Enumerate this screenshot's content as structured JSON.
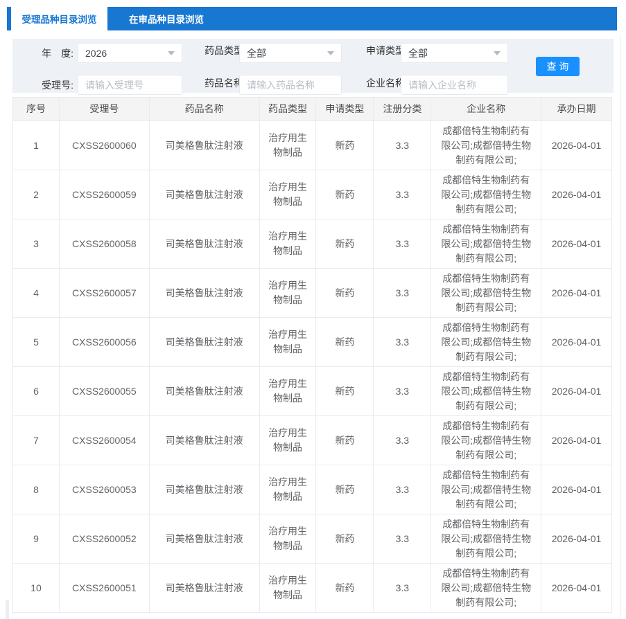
{
  "tabs": [
    {
      "label": "受理品种目录浏览",
      "active": true
    },
    {
      "label": "在审品种目录浏览",
      "active": false
    }
  ],
  "filters": {
    "year": {
      "label": "年　度:",
      "value": "2026"
    },
    "drug_type": {
      "label": "药品类型:",
      "value": "全部"
    },
    "app_type": {
      "label": "申请类型:",
      "value": "全部"
    },
    "acceptance": {
      "label": "受理号:",
      "placeholder": "请输入受理号"
    },
    "drug_name": {
      "label": "药品名称:",
      "placeholder": "请输入药品名称"
    },
    "company": {
      "label": "企业名称:",
      "placeholder": "请输入企业名称"
    },
    "search_label": "查 询"
  },
  "table": {
    "columns": [
      "序号",
      "受理号",
      "药品名称",
      "药品类型",
      "申请类型",
      "注册分类",
      "企业名称",
      "承办日期"
    ],
    "rows": [
      [
        "1",
        "CXSS2600060",
        "司美格鲁肽注射液",
        "治疗用生物制品",
        "新药",
        "3.3",
        "成都倍特生物制药有限公司;成都倍特生物制药有限公司;",
        "2026-04-01"
      ],
      [
        "2",
        "CXSS2600059",
        "司美格鲁肽注射液",
        "治疗用生物制品",
        "新药",
        "3.3",
        "成都倍特生物制药有限公司;成都倍特生物制药有限公司;",
        "2026-04-01"
      ],
      [
        "3",
        "CXSS2600058",
        "司美格鲁肽注射液",
        "治疗用生物制品",
        "新药",
        "3.3",
        "成都倍特生物制药有限公司;成都倍特生物制药有限公司;",
        "2026-04-01"
      ],
      [
        "4",
        "CXSS2600057",
        "司美格鲁肽注射液",
        "治疗用生物制品",
        "新药",
        "3.3",
        "成都倍特生物制药有限公司;成都倍特生物制药有限公司;",
        "2026-04-01"
      ],
      [
        "5",
        "CXSS2600056",
        "司美格鲁肽注射液",
        "治疗用生物制品",
        "新药",
        "3.3",
        "成都倍特生物制药有限公司;成都倍特生物制药有限公司;",
        "2026-04-01"
      ],
      [
        "6",
        "CXSS2600055",
        "司美格鲁肽注射液",
        "治疗用生物制品",
        "新药",
        "3.3",
        "成都倍特生物制药有限公司;成都倍特生物制药有限公司;",
        "2026-04-01"
      ],
      [
        "7",
        "CXSS2600054",
        "司美格鲁肽注射液",
        "治疗用生物制品",
        "新药",
        "3.3",
        "成都倍特生物制药有限公司;成都倍特生物制药有限公司;",
        "2026-04-01"
      ],
      [
        "8",
        "CXSS2600053",
        "司美格鲁肽注射液",
        "治疗用生物制品",
        "新药",
        "3.3",
        "成都倍特生物制药有限公司;成都倍特生物制药有限公司;",
        "2026-04-01"
      ],
      [
        "9",
        "CXSS2600052",
        "司美格鲁肽注射液",
        "治疗用生物制品",
        "新药",
        "3.3",
        "成都倍特生物制药有限公司;成都倍特生物制药有限公司;",
        "2026-04-01"
      ],
      [
        "10",
        "CXSS2600051",
        "司美格鲁肽注射液",
        "治疗用生物制品",
        "新药",
        "3.3",
        "成都倍特生物制药有限公司;成都倍特生物制药有限公司;",
        "2026-04-01"
      ]
    ]
  },
  "colors": {
    "tabbar_blue": "#1777d1",
    "button_blue": "#1890ff",
    "filter_bg": "#eef1f6",
    "table_header_bg": "#f4f4f5",
    "border": "#eaebed",
    "cell_text": "#606266"
  }
}
